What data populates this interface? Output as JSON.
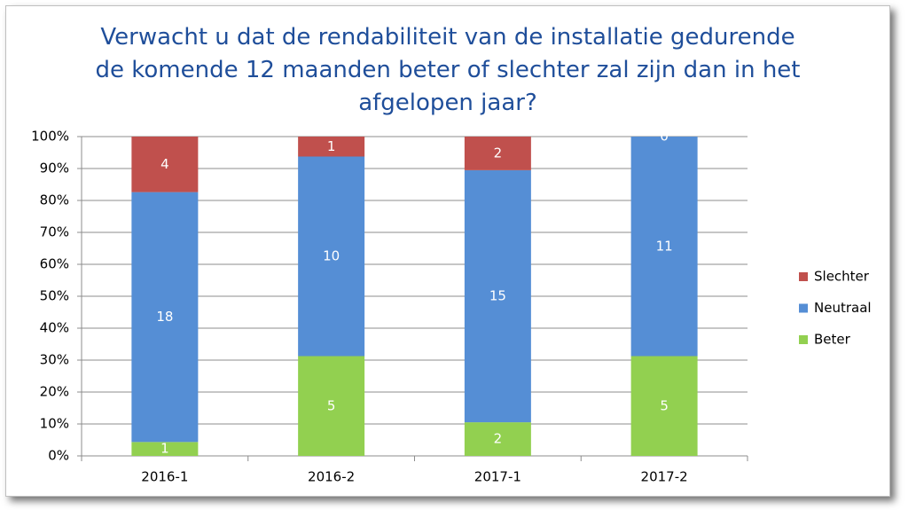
{
  "chart_data": {
    "type": "bar",
    "stacking": "percent",
    "title": "Verwacht u dat de rendabiliteit van de installatie gedurende de komende 12 maanden beter of slechter zal zijn dan in het afgelopen jaar?",
    "categories": [
      "2016-1",
      "2016-2",
      "2017-1",
      "2017-2"
    ],
    "series": [
      {
        "name": "Beter",
        "color": "#92d050",
        "values": [
          1,
          5,
          2,
          5
        ]
      },
      {
        "name": "Neutraal",
        "color": "#558ed5",
        "values": [
          18,
          10,
          15,
          11
        ]
      },
      {
        "name": "Slechter",
        "color": "#c0504d",
        "values": [
          4,
          1,
          2,
          0
        ]
      }
    ],
    "ylim": [
      0,
      100
    ],
    "yticks": [
      {
        "value": 0,
        "label": "0%"
      },
      {
        "value": 10,
        "label": "10%"
      },
      {
        "value": 20,
        "label": "20%"
      },
      {
        "value": 30,
        "label": "30%"
      },
      {
        "value": 40,
        "label": "40%"
      },
      {
        "value": 50,
        "label": "50%"
      },
      {
        "value": 60,
        "label": "60%"
      },
      {
        "value": 70,
        "label": "70%"
      },
      {
        "value": 80,
        "label": "80%"
      },
      {
        "value": 90,
        "label": "90%"
      },
      {
        "value": 100,
        "label": "100%"
      }
    ],
    "grid": true,
    "legend": "right"
  }
}
